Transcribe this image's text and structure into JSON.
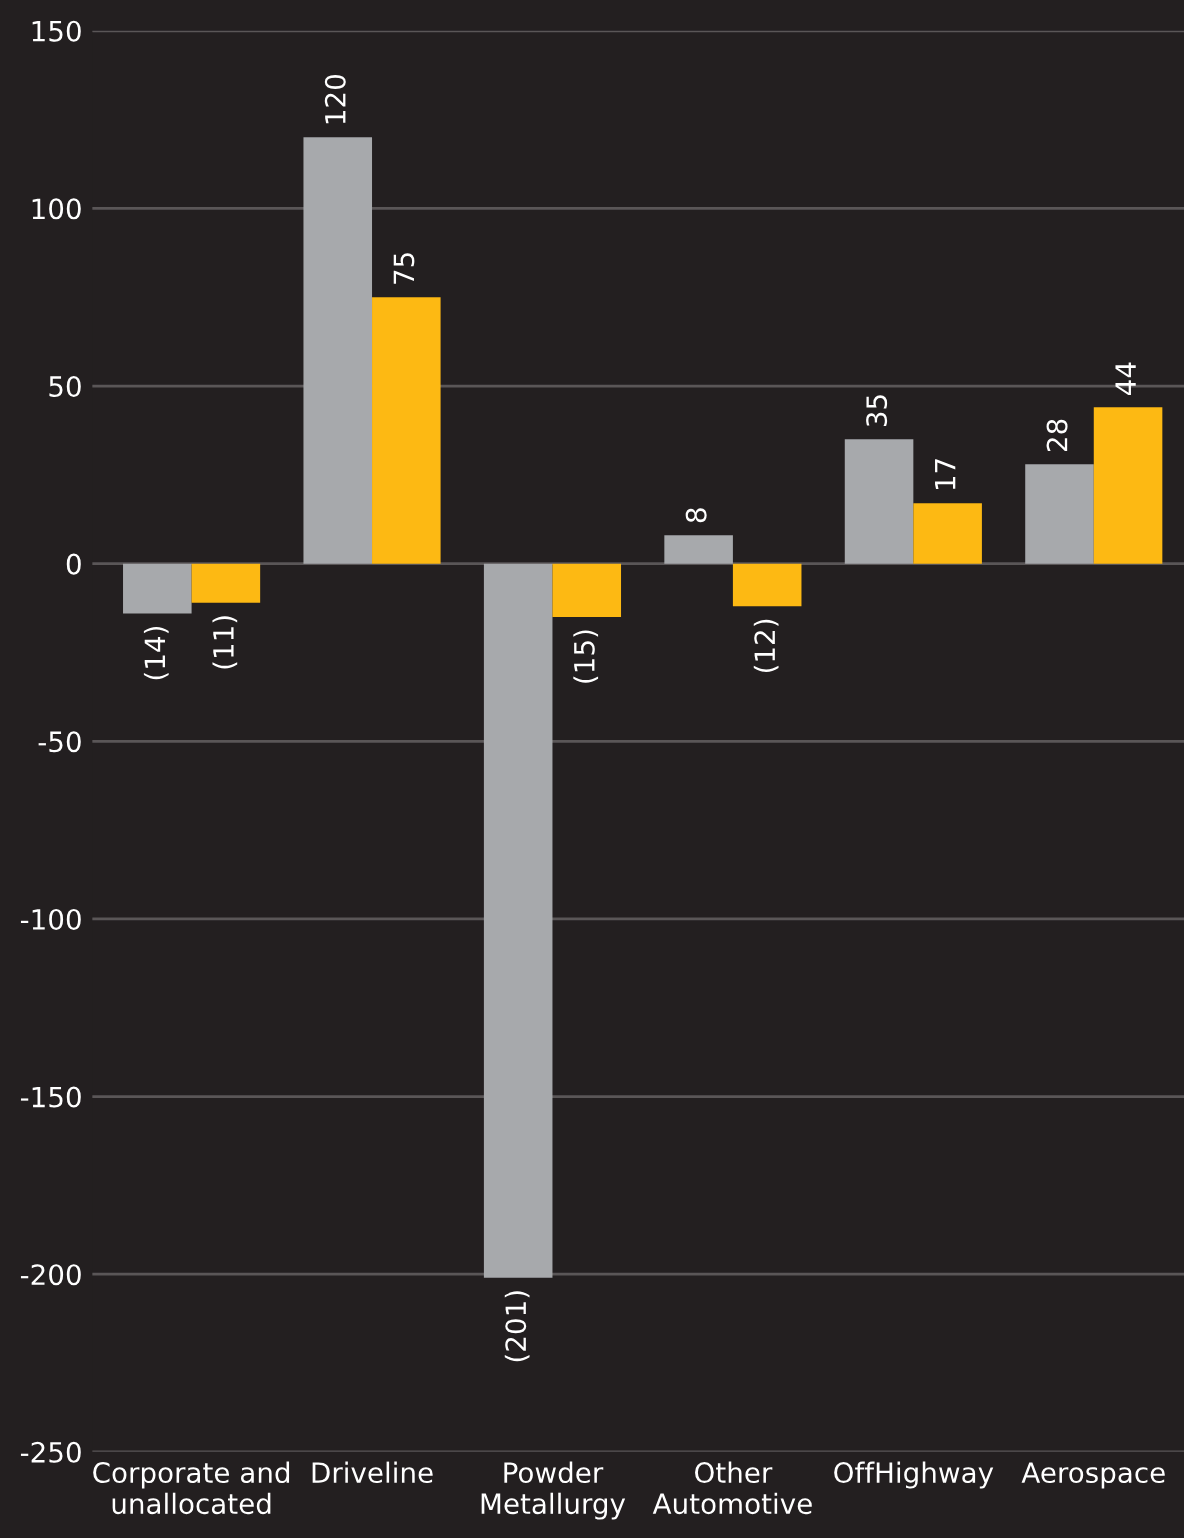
{
  "chart_data": {
    "type": "bar",
    "categories": [
      "Corporate and\nunallocated",
      "Driveline",
      "Powder\nMetallurgy",
      "Other\nAutomotive",
      "OffHighway",
      "Aerospace"
    ],
    "series": [
      {
        "color": "#a7a9ac",
        "values": [
          -14,
          120,
          -201,
          8,
          35,
          28
        ],
        "value_labels": [
          "(14)",
          "120",
          "(201)",
          "8",
          "35",
          "28"
        ]
      },
      {
        "color": "#fdb913",
        "values": [
          -11,
          75,
          -15,
          -12,
          17,
          44
        ],
        "value_labels": [
          "(11)",
          "75",
          "(15)",
          "(12)",
          "17",
          "44"
        ]
      }
    ],
    "ylim": [
      -250,
      150
    ],
    "yticks": [
      -250,
      -200,
      -150,
      -100,
      -50,
      0,
      50,
      100,
      150
    ],
    "grid": "y"
  }
}
